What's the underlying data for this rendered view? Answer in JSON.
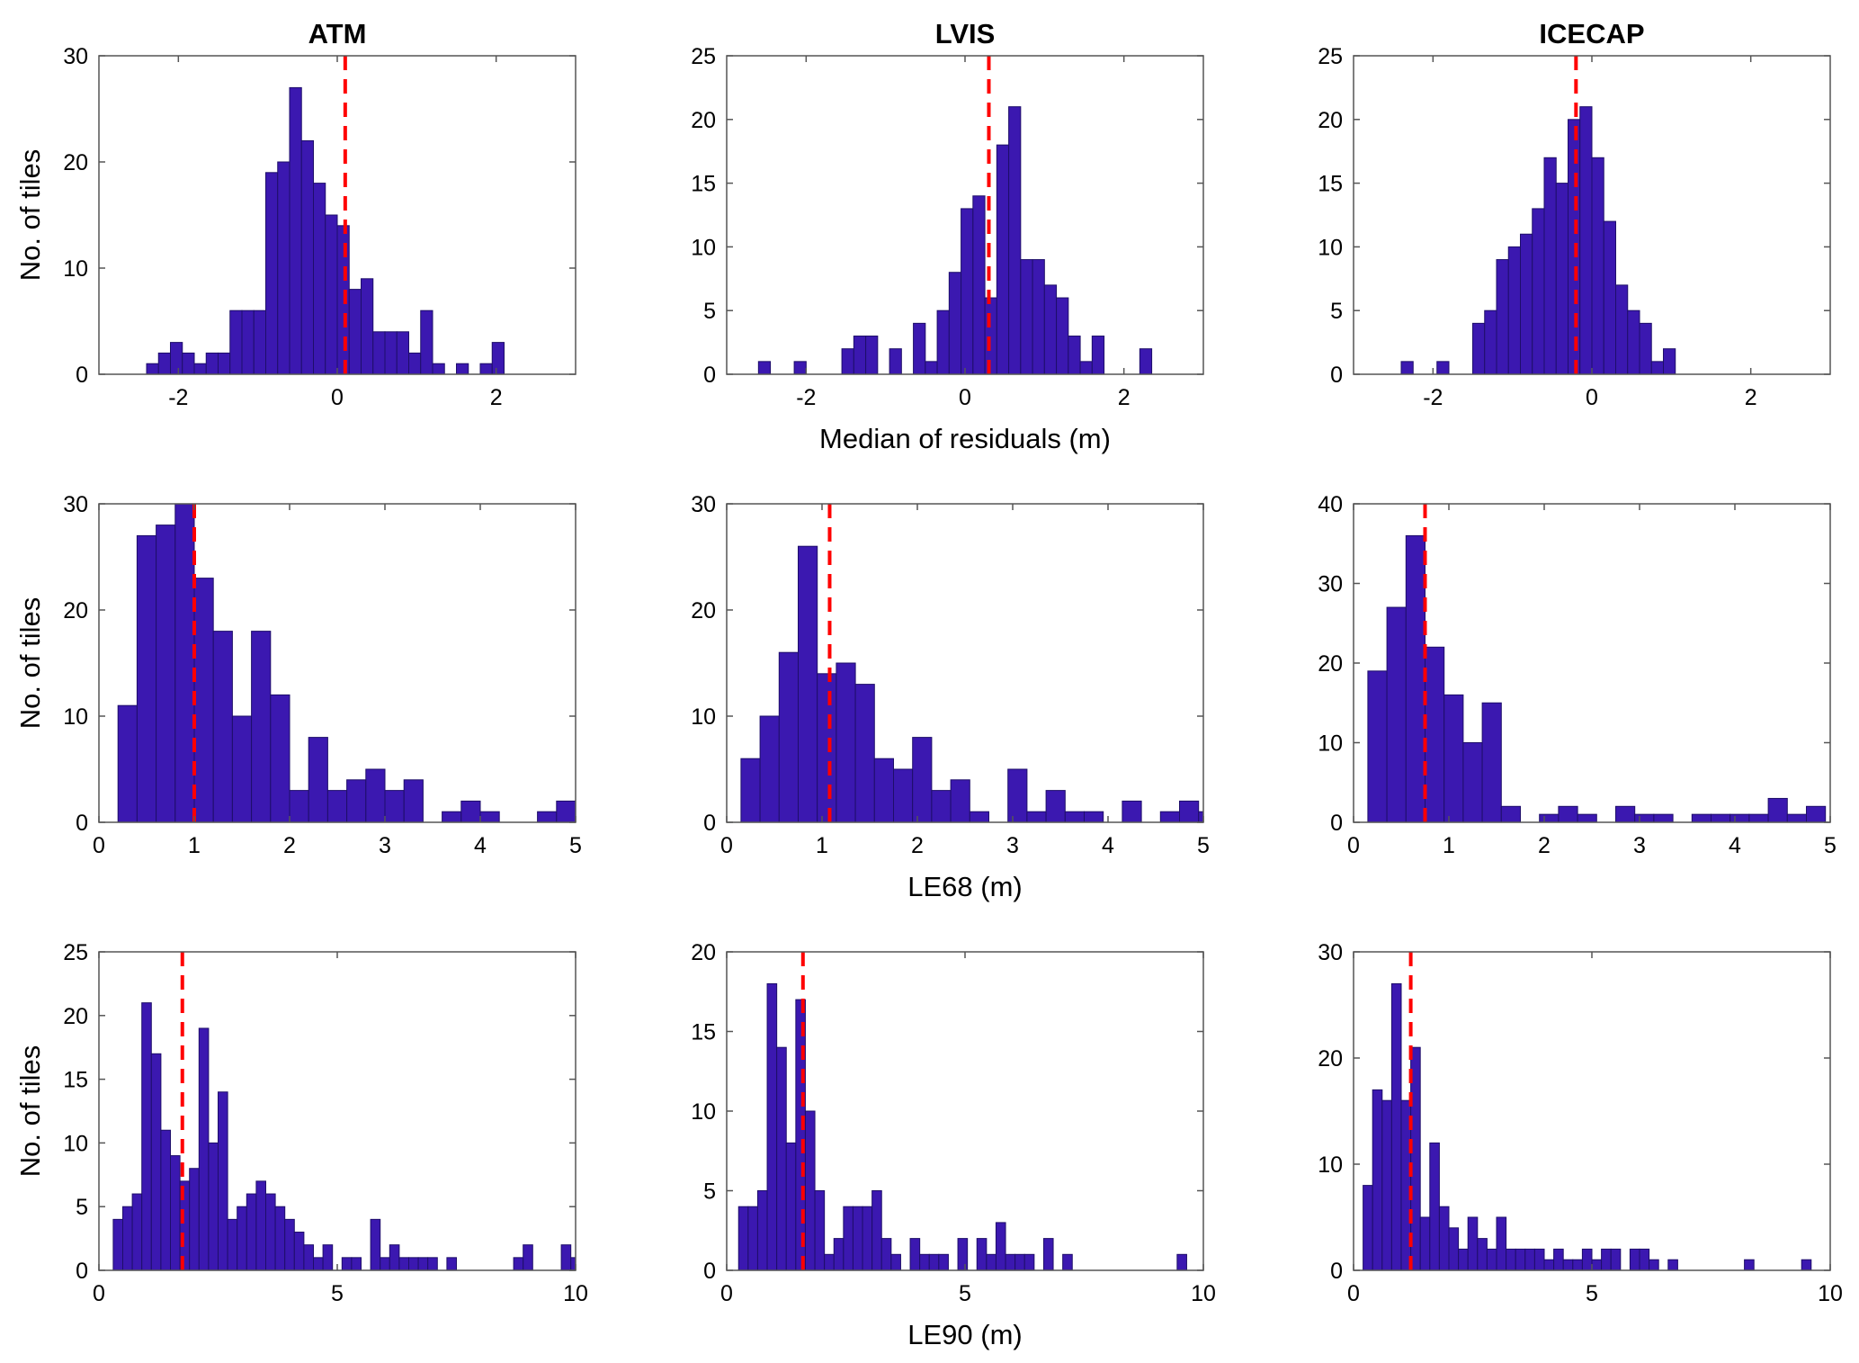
{
  "figure": {
    "column_titles": [
      "ATM",
      "LVIS",
      "ICECAP"
    ],
    "row_xlabels": [
      "Median of residuals (m)",
      "LE68 (m)",
      "LE90 (m)"
    ],
    "ylabel": "No. of tiles",
    "bar_color": "#3b18b0",
    "bar_edge_color": "#1e0e6a",
    "mean_line_color": "#ff0000"
  },
  "chart_data": [
    {
      "type": "bar",
      "title": "ATM",
      "xlabel": "",
      "ylabel": "No. of tiles",
      "xlim": [
        -3,
        3
      ],
      "ylim": [
        0,
        30
      ],
      "xticks": [
        -2,
        0,
        2
      ],
      "yticks": [
        0,
        10,
        20,
        30
      ],
      "bin_width": 0.15,
      "bin_start": -2.4,
      "counts": [
        1,
        2,
        3,
        2,
        1,
        2,
        2,
        6,
        6,
        6,
        19,
        20,
        27,
        22,
        18,
        15,
        14,
        8,
        9,
        4,
        4,
        4,
        2,
        6,
        1,
        0,
        1,
        0,
        1,
        3
      ],
      "reference_line_x": 0.1
    },
    {
      "type": "bar",
      "title": "LVIS",
      "xlabel": "Median of residuals (m)",
      "ylabel": "",
      "xlim": [
        -3,
        3
      ],
      "ylim": [
        0,
        25
      ],
      "xticks": [
        -2,
        0,
        2
      ],
      "yticks": [
        0,
        5,
        10,
        15,
        20,
        25
      ],
      "bin_width": 0.15,
      "bin_start": -2.6,
      "counts": [
        1,
        0,
        0,
        1,
        0,
        0,
        0,
        2,
        3,
        3,
        0,
        2,
        0,
        4,
        1,
        5,
        8,
        13,
        14,
        6,
        18,
        21,
        9,
        9,
        7,
        6,
        3,
        1,
        3,
        0,
        0,
        0,
        2
      ],
      "reference_line_x": 0.3
    },
    {
      "type": "bar",
      "title": "ICECAP",
      "xlabel": "",
      "ylabel": "",
      "xlim": [
        -3,
        3
      ],
      "ylim": [
        0,
        25
      ],
      "xticks": [
        -2,
        0,
        2
      ],
      "yticks": [
        0,
        5,
        10,
        15,
        20,
        25
      ],
      "bin_width": 0.15,
      "bin_start": -2.4,
      "counts": [
        1,
        0,
        0,
        1,
        0,
        0,
        4,
        5,
        9,
        10,
        11,
        13,
        17,
        15,
        20,
        21,
        17,
        12,
        7,
        5,
        4,
        1,
        2
      ],
      "reference_line_x": -0.2
    },
    {
      "type": "bar",
      "title": "",
      "xlabel": "",
      "ylabel": "No. of tiles",
      "xlim": [
        0,
        5
      ],
      "ylim": [
        0,
        30
      ],
      "xticks": [
        0,
        1,
        2,
        3,
        4,
        5
      ],
      "yticks": [
        0,
        10,
        20,
        30
      ],
      "bin_width": 0.2,
      "bin_start": 0.2,
      "counts": [
        11,
        27,
        28,
        30,
        23,
        18,
        10,
        18,
        12,
        3,
        8,
        3,
        4,
        5,
        3,
        4,
        0,
        1,
        2,
        1,
        0,
        0,
        1,
        2
      ],
      "reference_line_x": 1.0
    },
    {
      "type": "bar",
      "title": "",
      "xlabel": "LE68 (m)",
      "ylabel": "",
      "xlim": [
        0,
        5
      ],
      "ylim": [
        0,
        30
      ],
      "xticks": [
        0,
        1,
        2,
        3,
        4,
        5
      ],
      "yticks": [
        0,
        10,
        20,
        30
      ],
      "bin_width": 0.2,
      "bin_start": 0.15,
      "counts": [
        6,
        10,
        16,
        26,
        14,
        15,
        13,
        6,
        5,
        8,
        3,
        4,
        1,
        0,
        5,
        1,
        3,
        1,
        1,
        0,
        2,
        0,
        1,
        2,
        1
      ],
      "reference_line_x": 1.08
    },
    {
      "type": "bar",
      "title": "",
      "xlabel": "",
      "ylabel": "",
      "xlim": [
        0,
        5
      ],
      "ylim": [
        0,
        40
      ],
      "xticks": [
        0,
        1,
        2,
        3,
        4,
        5
      ],
      "yticks": [
        0,
        10,
        20,
        30,
        40
      ],
      "bin_width": 0.2,
      "bin_start": 0.15,
      "counts": [
        19,
        27,
        36,
        22,
        16,
        10,
        15,
        2,
        0,
        1,
        2,
        1,
        0,
        2,
        1,
        1,
        0,
        1,
        1,
        1,
        1,
        3,
        1,
        2
      ],
      "reference_line_x": 0.75
    },
    {
      "type": "bar",
      "title": "",
      "xlabel": "",
      "ylabel": "No. of tiles",
      "xlim": [
        0,
        10
      ],
      "ylim": [
        0,
        25
      ],
      "xticks": [
        0,
        5,
        10
      ],
      "yticks": [
        0,
        5,
        10,
        15,
        20,
        25
      ],
      "bin_width": 0.2,
      "bin_start": 0.3,
      "counts": [
        4,
        5,
        6,
        21,
        17,
        11,
        9,
        7,
        8,
        19,
        10,
        14,
        4,
        5,
        6,
        7,
        6,
        5,
        4,
        3,
        2,
        1,
        2,
        0,
        1,
        1,
        0,
        4,
        1,
        2,
        1,
        1,
        1,
        1,
        0,
        1,
        0,
        0,
        0,
        0,
        0,
        0,
        1,
        2,
        0,
        0,
        0,
        2,
        1
      ],
      "reference_line_x": 1.75
    },
    {
      "type": "bar",
      "title": "",
      "xlabel": "LE90 (m)",
      "ylabel": "",
      "xlim": [
        0,
        10
      ],
      "ylim": [
        0,
        20
      ],
      "xticks": [
        0,
        5,
        10
      ],
      "yticks": [
        0,
        5,
        10,
        15,
        20
      ],
      "bin_width": 0.2,
      "bin_start": 0.25,
      "counts": [
        4,
        4,
        5,
        18,
        14,
        8,
        17,
        10,
        5,
        1,
        2,
        4,
        4,
        4,
        5,
        2,
        1,
        0,
        2,
        1,
        1,
        1,
        0,
        2,
        0,
        2,
        1,
        3,
        1,
        1,
        1,
        0,
        2,
        0,
        1,
        0,
        0,
        0,
        0,
        0,
        0,
        0,
        0,
        0,
        0,
        0,
        1
      ],
      "reference_line_x": 1.6
    },
    {
      "type": "bar",
      "title": "",
      "xlabel": "",
      "ylabel": "",
      "xlim": [
        0,
        10
      ],
      "ylim": [
        0,
        30
      ],
      "xticks": [
        0,
        5,
        10
      ],
      "yticks": [
        0,
        10,
        20,
        30
      ],
      "bin_width": 0.2,
      "bin_start": 0.2,
      "counts": [
        8,
        17,
        16,
        27,
        16,
        21,
        5,
        12,
        6,
        4,
        2,
        5,
        3,
        2,
        5,
        2,
        2,
        2,
        2,
        1,
        2,
        1,
        1,
        2,
        1,
        2,
        2,
        0,
        2,
        2,
        1,
        0,
        1,
        0,
        0,
        0,
        0,
        0,
        0,
        0,
        1,
        0,
        0,
        0,
        0,
        0,
        1,
        0,
        0,
        0,
        0,
        0,
        0,
        0,
        0,
        0,
        0,
        0,
        0,
        0,
        0,
        0,
        0,
        0,
        0,
        0,
        0,
        0,
        0,
        0,
        0,
        0,
        0,
        1
      ],
      "reference_line_x": 1.2
    }
  ]
}
